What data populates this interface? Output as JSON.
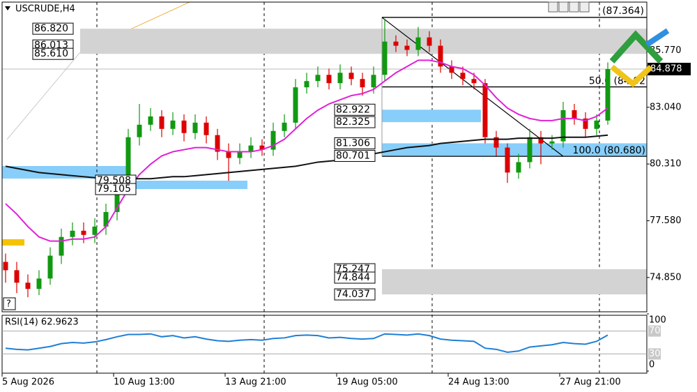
{
  "chart_data": {
    "type": "candlestick",
    "title": "USCRUDE,H4",
    "categories": [
      "5 Aug 2026",
      null,
      null,
      null,
      null,
      null,
      null,
      null,
      null,
      null,
      "10 Aug 13:00",
      null,
      null,
      null,
      null,
      null,
      null,
      null,
      null,
      null,
      "13 Aug 21:00",
      null,
      null,
      null,
      null,
      null,
      null,
      null,
      null,
      null,
      "19 Aug 05:00",
      null,
      null,
      null,
      null,
      null,
      null,
      null,
      null,
      null,
      "24 Aug 13:00",
      null,
      null,
      null,
      null,
      null,
      null,
      null,
      null,
      null,
      "27 Aug 21:00",
      null,
      null,
      null,
      null
    ],
    "open": [
      75.6,
      75.2,
      74.6,
      74.3,
      74.8,
      75.9,
      76.8,
      77.1,
      76.9,
      77.3,
      78.0,
      79.4,
      81.6,
      82.2,
      82.6,
      82.0,
      82.4,
      81.8,
      82.3,
      81.7,
      80.9,
      80.6,
      80.9,
      81.2,
      81.0,
      81.9,
      82.3,
      84.0,
      84.3,
      84.6,
      84.2,
      84.7,
      84.4,
      84.0,
      84.6,
      86.2,
      86.0,
      85.8,
      86.4,
      86.0,
      85.0,
      84.7,
      84.4,
      84.2,
      81.6,
      81.1,
      79.9,
      80.4,
      81.6,
      81.3,
      81.4,
      82.9,
      82.5,
      82.0,
      82.4
    ],
    "high": [
      76.0,
      75.6,
      75.0,
      75.2,
      76.3,
      77.2,
      77.5,
      77.5,
      77.7,
      78.4,
      79.8,
      82.0,
      83.2,
      83.0,
      82.9,
      82.8,
      82.7,
      82.7,
      82.6,
      82.0,
      81.3,
      81.3,
      81.6,
      81.5,
      82.3,
      82.7,
      84.4,
      84.7,
      85.0,
      84.9,
      85.1,
      85.0,
      84.7,
      85.0,
      87.3,
      86.5,
      86.3,
      86.9,
      86.7,
      86.3,
      85.3,
      85.0,
      84.7,
      84.4,
      81.9,
      81.3,
      80.8,
      82.0,
      81.9,
      81.7,
      83.3,
      83.2,
      82.8,
      82.7,
      85.2
    ],
    "low": [
      74.6,
      74.1,
      73.9,
      74.0,
      74.5,
      75.5,
      76.4,
      76.5,
      76.5,
      76.9,
      77.6,
      79.1,
      81.2,
      81.9,
      81.6,
      81.7,
      81.4,
      81.5,
      81.3,
      80.5,
      79.5,
      80.3,
      80.6,
      80.7,
      80.7,
      81.6,
      82.0,
      83.7,
      84.0,
      83.9,
      83.9,
      84.1,
      83.6,
      83.7,
      84.3,
      85.7,
      85.5,
      85.5,
      85.7,
      84.7,
      84.4,
      84.1,
      83.9,
      81.3,
      80.7,
      79.4,
      79.6,
      80.1,
      80.3,
      81.0,
      81.1,
      82.2,
      81.6,
      81.7,
      82.2
    ],
    "close": [
      75.2,
      74.6,
      74.3,
      74.8,
      75.9,
      76.8,
      77.1,
      76.9,
      77.3,
      78.0,
      79.4,
      81.6,
      82.2,
      82.6,
      82.0,
      82.4,
      81.8,
      82.3,
      81.7,
      80.9,
      80.6,
      80.9,
      81.2,
      81.0,
      81.9,
      82.3,
      84.0,
      84.3,
      84.6,
      84.2,
      84.7,
      84.4,
      84.0,
      84.6,
      86.2,
      86.0,
      85.8,
      86.4,
      86.0,
      85.0,
      84.7,
      84.4,
      84.2,
      81.6,
      81.1,
      79.9,
      80.4,
      81.6,
      81.3,
      81.4,
      82.9,
      82.5,
      82.0,
      82.4,
      84.878
    ],
    "up_color": "#119911",
    "down_color": "#dd0000",
    "ylim": [
      73.2,
      88.1
    ],
    "yticks": [
      {
        "value": 85.77,
        "label": "85.770"
      },
      {
        "value": 83.04,
        "label": "83.040"
      },
      {
        "value": 80.31,
        "label": "80.310"
      },
      {
        "value": 77.58,
        "label": "77.580"
      },
      {
        "value": 74.85,
        "label": "74.850"
      }
    ],
    "last_price": 84.878,
    "overlays": [
      {
        "color": "#e020d8",
        "values": [
          78.4,
          77.9,
          77.3,
          76.8,
          76.6,
          76.6,
          76.7,
          76.7,
          76.8,
          77.3,
          78.2,
          79.1,
          79.8,
          80.3,
          80.7,
          80.9,
          81.0,
          81.1,
          81.1,
          81.0,
          80.9,
          80.9,
          80.9,
          81.0,
          81.2,
          81.5,
          82.0,
          82.5,
          82.9,
          83.2,
          83.4,
          83.6,
          83.7,
          83.9,
          84.3,
          84.7,
          85.0,
          85.3,
          85.3,
          85.2,
          85.0,
          84.9,
          84.6,
          84.1,
          83.5,
          83.0,
          82.7,
          82.5,
          82.4,
          82.4,
          82.5,
          82.5,
          82.4,
          82.6,
          83.0
        ]
      },
      {
        "color": "#111111",
        "values": [
          80.2,
          80.1,
          80.0,
          79.9,
          79.85,
          79.8,
          79.75,
          79.7,
          79.65,
          79.6,
          79.6,
          79.6,
          79.6,
          79.6,
          79.65,
          79.7,
          79.7,
          79.75,
          79.8,
          79.85,
          79.9,
          79.95,
          80.0,
          80.05,
          80.1,
          80.15,
          80.2,
          80.3,
          80.4,
          80.45,
          80.5,
          80.6,
          80.7,
          80.8,
          80.9,
          81.0,
          81.1,
          81.15,
          81.2,
          81.3,
          81.35,
          81.4,
          81.45,
          81.5,
          81.5,
          81.5,
          81.55,
          81.55,
          81.55,
          81.55,
          81.6,
          81.6,
          81.6,
          81.65,
          81.7
        ]
      }
    ],
    "zones": [
      {
        "color": "#d3d3d3",
        "levels": [
          {
            "value": 86.82,
            "label": "86.820"
          },
          {
            "value": 86.013,
            "label": "86.013"
          },
          {
            "value": 85.61,
            "label": "85.610"
          }
        ]
      },
      {
        "color": "#d3d3d3",
        "levels": [
          {
            "value": 75.247,
            "label": "75.247"
          },
          {
            "value": 74.844,
            "label": "74.844"
          },
          {
            "value": 74.037,
            "label": "74.037"
          }
        ]
      },
      {
        "color": "#87cefa",
        "levels": [
          {
            "value": 82.325,
            "label": "82.325"
          },
          {
            "value": 82.922,
            "label": "82.922"
          }
        ]
      },
      {
        "color": "#87cefa",
        "levels": [
          {
            "value": 81.306,
            "label": "81.306"
          },
          {
            "value": 80.701,
            "label": "80.701"
          }
        ]
      },
      {
        "color": "#87cefa",
        "levels": [
          {
            "value": 79.508,
            "label": "79.508"
          },
          {
            "value": 79.105,
            "label": "79.105"
          }
        ]
      }
    ],
    "fib": [
      {
        "value": 87.364,
        "label": "(87.364)"
      },
      {
        "value": 84.02,
        "label": "50.0 (84.02"
      },
      {
        "value": 80.68,
        "label": "100.0 (80.680)"
      }
    ],
    "rsi": {
      "title": "RSI(14) 62.9623",
      "color": "#1e7fd6",
      "ylim": [
        0,
        100
      ],
      "yticks": [
        100,
        70,
        30,
        0
      ],
      "values": [
        40,
        38,
        37,
        40,
        43,
        48,
        50,
        49,
        51,
        55,
        60,
        64,
        64,
        65,
        60,
        62,
        58,
        60,
        56,
        53,
        52,
        54,
        55,
        54,
        57,
        58,
        62,
        63,
        62,
        58,
        59,
        57,
        56,
        57,
        65,
        64,
        63,
        65,
        62,
        56,
        54,
        53,
        52,
        40,
        38,
        33,
        35,
        42,
        44,
        46,
        50,
        48,
        47,
        52,
        62.9623
      ]
    }
  }
}
